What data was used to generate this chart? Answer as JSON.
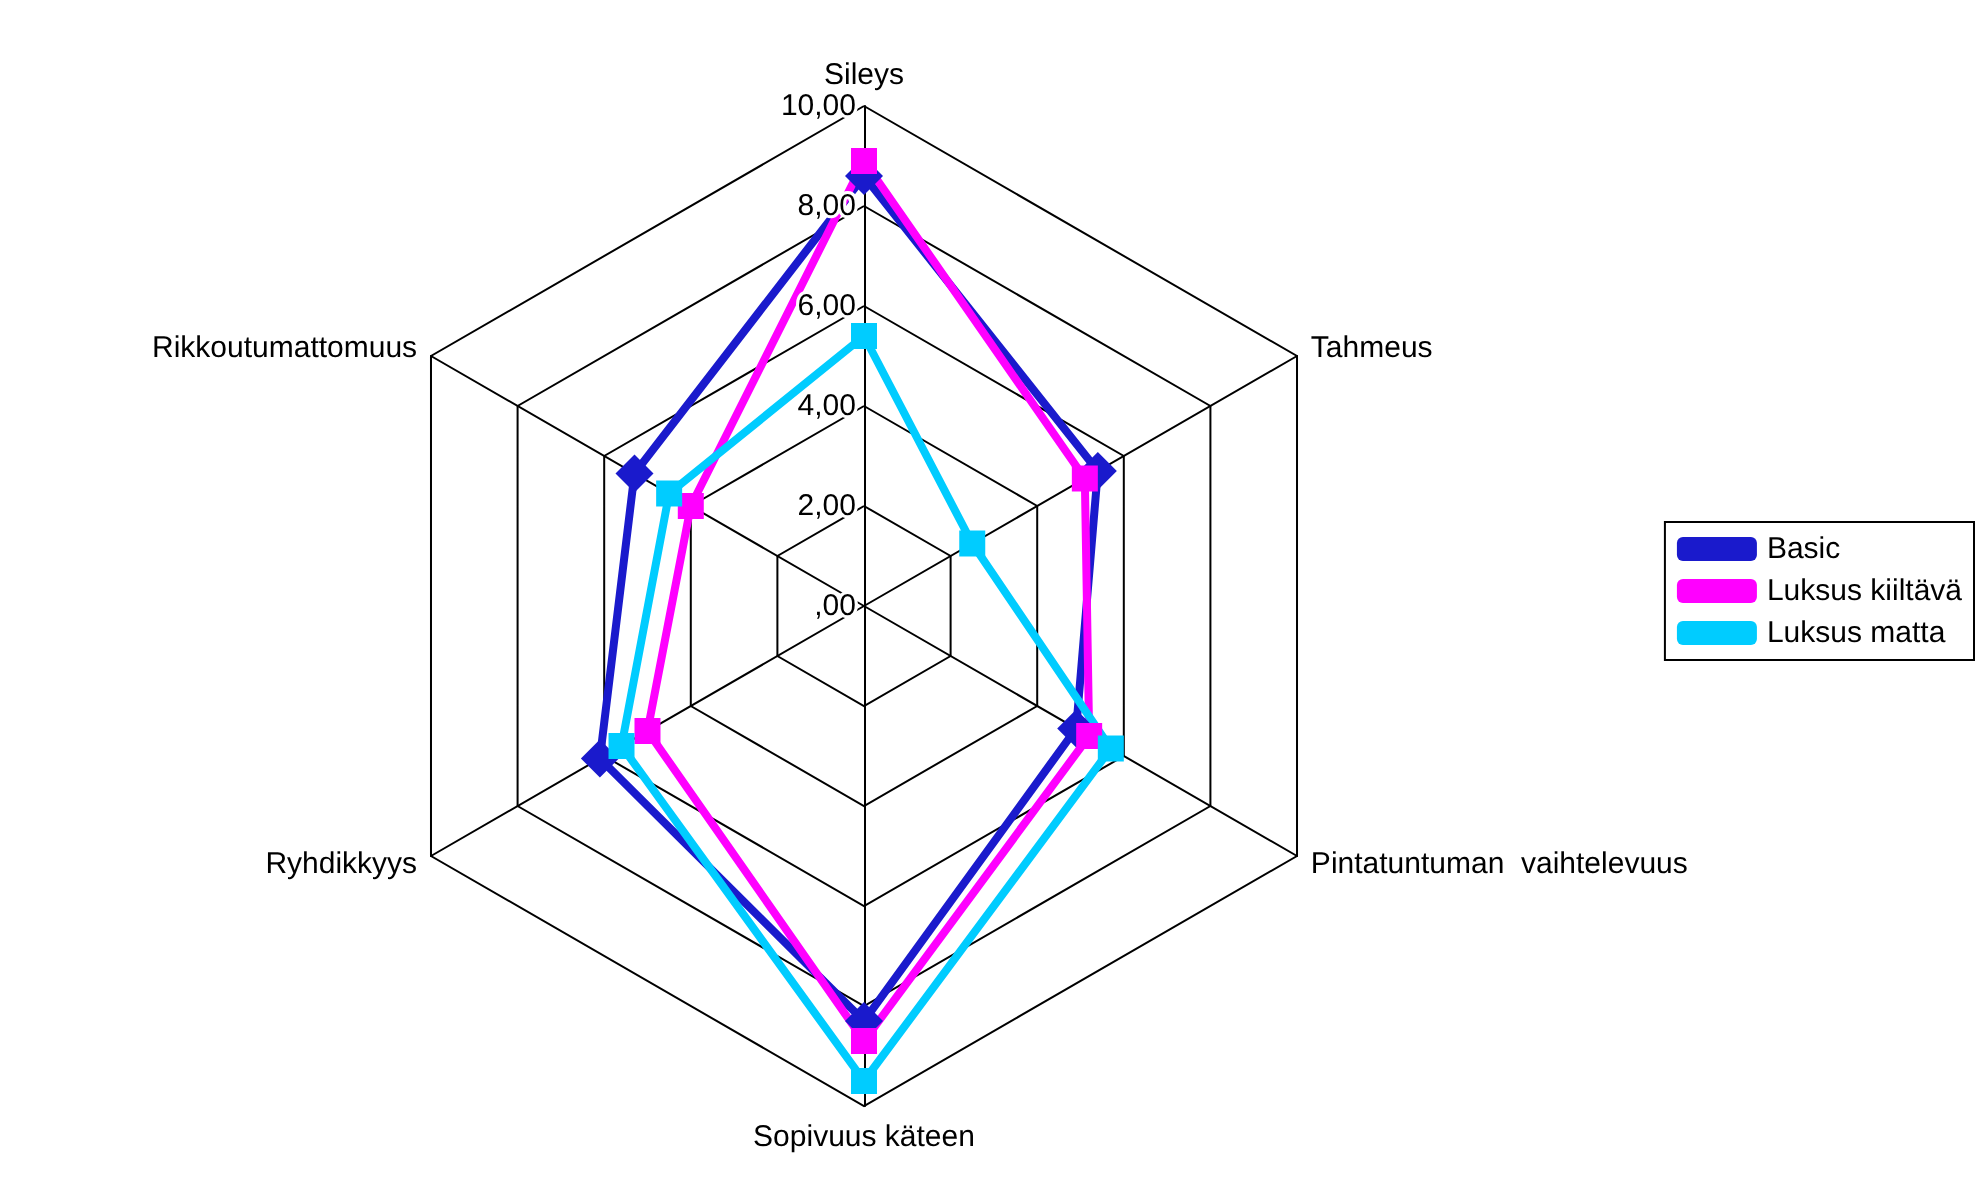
{
  "chart_data": {
    "type": "radar",
    "categories": [
      "Sileys",
      "Tahmeus",
      "Pintatuntuman  vaihtelevuus",
      "Sopivuus käteen",
      "Ryhdikkyys",
      "Rikkoutumattomuus"
    ],
    "ylim": [
      0,
      10
    ],
    "yticks": [
      {
        "value": 0,
        "label": ",00"
      },
      {
        "value": 2,
        "label": "2,00"
      },
      {
        "value": 4,
        "label": "4,00"
      },
      {
        "value": 6,
        "label": "6,00"
      },
      {
        "value": 8,
        "label": "8,00"
      },
      {
        "value": 10,
        "label": "10,00"
      }
    ],
    "legend": "right",
    "series": [
      {
        "name": "Basic",
        "color": "#1a1acc",
        "marker": "diamond",
        "values": [
          8.6,
          5.4,
          4.9,
          8.3,
          6.1,
          5.3
        ]
      },
      {
        "name": "Luksus kiiltävä",
        "color": "#ff00ff",
        "marker": "square",
        "values": [
          8.9,
          5.1,
          5.2,
          8.7,
          5.0,
          4.0
        ]
      },
      {
        "name": "Luksus matta",
        "color": "#00ccff",
        "marker": "square",
        "values": [
          5.4,
          2.5,
          5.7,
          9.5,
          5.6,
          4.5
        ]
      }
    ]
  }
}
